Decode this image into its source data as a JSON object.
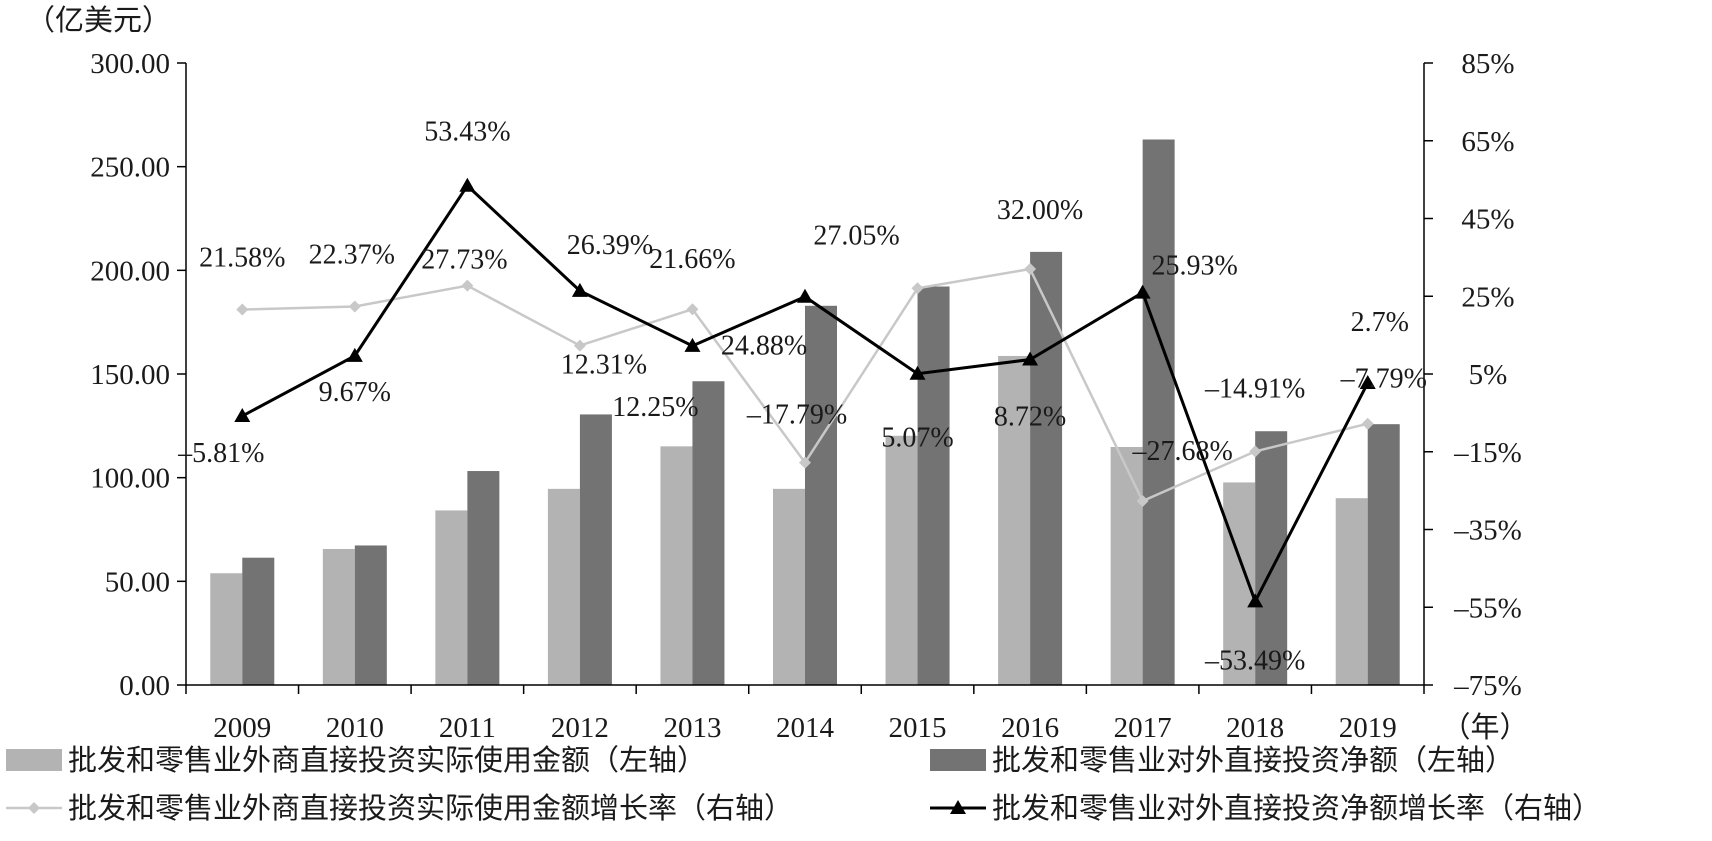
{
  "chart_data": {
    "type": "bar",
    "categories": [
      "2009",
      "2010",
      "2011",
      "2012",
      "2013",
      "2014",
      "2015",
      "2016",
      "2017",
      "2018",
      "2019"
    ],
    "left_axis": {
      "unit_label": "（亿美元）",
      "range": [
        0,
        300
      ],
      "ticks": [
        "0.00",
        "50.00",
        "100.00",
        "150.00",
        "200.00",
        "250.00",
        "300.00"
      ]
    },
    "right_axis": {
      "range": [
        -75,
        85
      ],
      "ticks": [
        "85%",
        "65%",
        "45%",
        "25%",
        "5%",
        "–15%",
        "–35%",
        "–55%",
        "–75%"
      ]
    },
    "x_unit_label": "（年）",
    "series": [
      {
        "name": "批发和零售业外商直接投资实际使用金额（左轴）",
        "type": "bar",
        "axis": "left",
        "color": "#b3b3b3",
        "values": [
          53.9,
          65.6,
          84.2,
          94.6,
          115.1,
          94.6,
          120.2,
          158.7,
          114.8,
          97.7,
          90.1
        ]
      },
      {
        "name": "批发和零售业对外直接投资净额（左轴）",
        "type": "bar",
        "axis": "left",
        "color": "#737373",
        "values": [
          61.4,
          67.3,
          103.2,
          130.5,
          146.5,
          182.9,
          192.2,
          208.9,
          263.1,
          122.4,
          125.8
        ]
      },
      {
        "name": "批发和零售业外商直接投资实际使用金额增长率（右轴）",
        "type": "line",
        "axis": "right",
        "color": "#c8c8c8",
        "marker": "diamond",
        "values": [
          21.58,
          22.37,
          27.73,
          12.31,
          21.66,
          -17.79,
          27.05,
          32.0,
          -27.68,
          -14.91,
          -7.79
        ],
        "labels": [
          "21.58%",
          "22.37%",
          "27.73%",
          "12.31%",
          "21.66%",
          "–17.79%",
          "27.05%",
          "32.00%",
          "–27.68%",
          "–14.91%",
          "–7.79%"
        ]
      },
      {
        "name": "批发和零售业对外直接投资净额增长率（右轴）",
        "type": "line",
        "axis": "right",
        "color": "#000000",
        "marker": "triangle",
        "values": [
          -5.81,
          9.67,
          53.43,
          26.39,
          12.25,
          24.88,
          5.07,
          8.72,
          25.93,
          -53.49,
          2.7
        ],
        "labels": [
          "–5.81%",
          "9.67%",
          "53.43%",
          "26.39%",
          "12.25%",
          "24.88%",
          "5.07%",
          "8.72%",
          "25.93%",
          "–53.49%",
          "2.7%"
        ]
      }
    ],
    "legend_placement": "bottom",
    "grid": false
  }
}
